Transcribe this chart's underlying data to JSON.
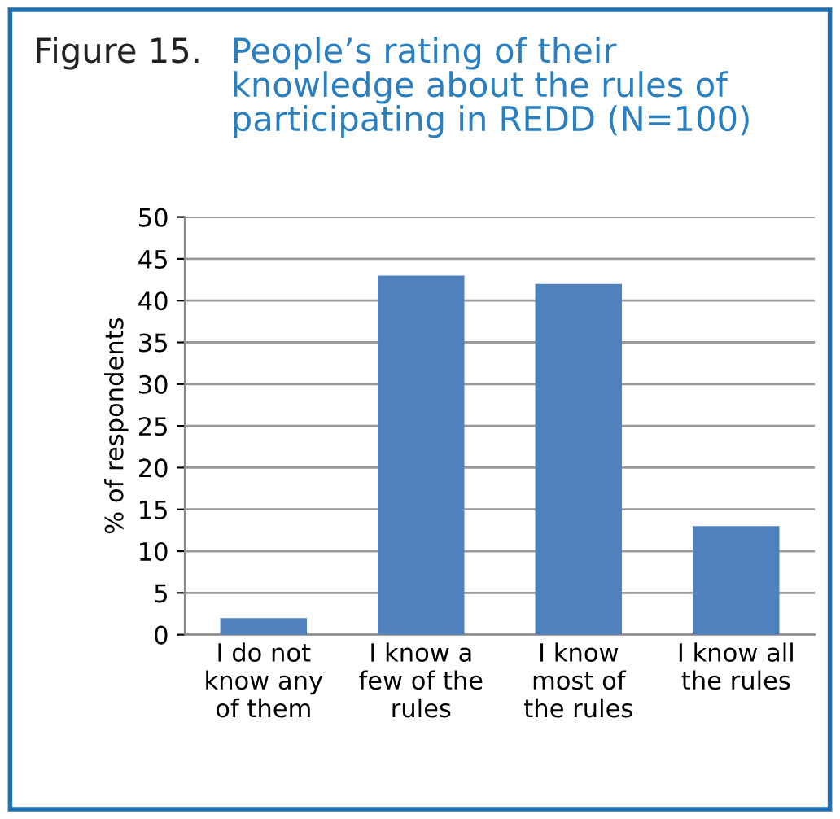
{
  "chart_data": {
    "type": "bar",
    "title": "Figure 15.",
    "subtitle": "People’s rating of their\nknowledge about the rules of\nparticipating in REDD (N=100)",
    "ylabel": "% of respondents",
    "categories": [
      "I do not\nknow any\nof them",
      "I know a\nfew of the\nrules",
      "I know\nmost of\nthe rules",
      "I know all\nthe rules"
    ],
    "values": [
      2,
      43,
      42,
      13
    ],
    "color": "#4f81bd",
    "ylim": [
      0,
      50
    ],
    "yticks": [
      0,
      5,
      10,
      15,
      20,
      25,
      30,
      35,
      40,
      45,
      50
    ],
    "grid": "y"
  }
}
